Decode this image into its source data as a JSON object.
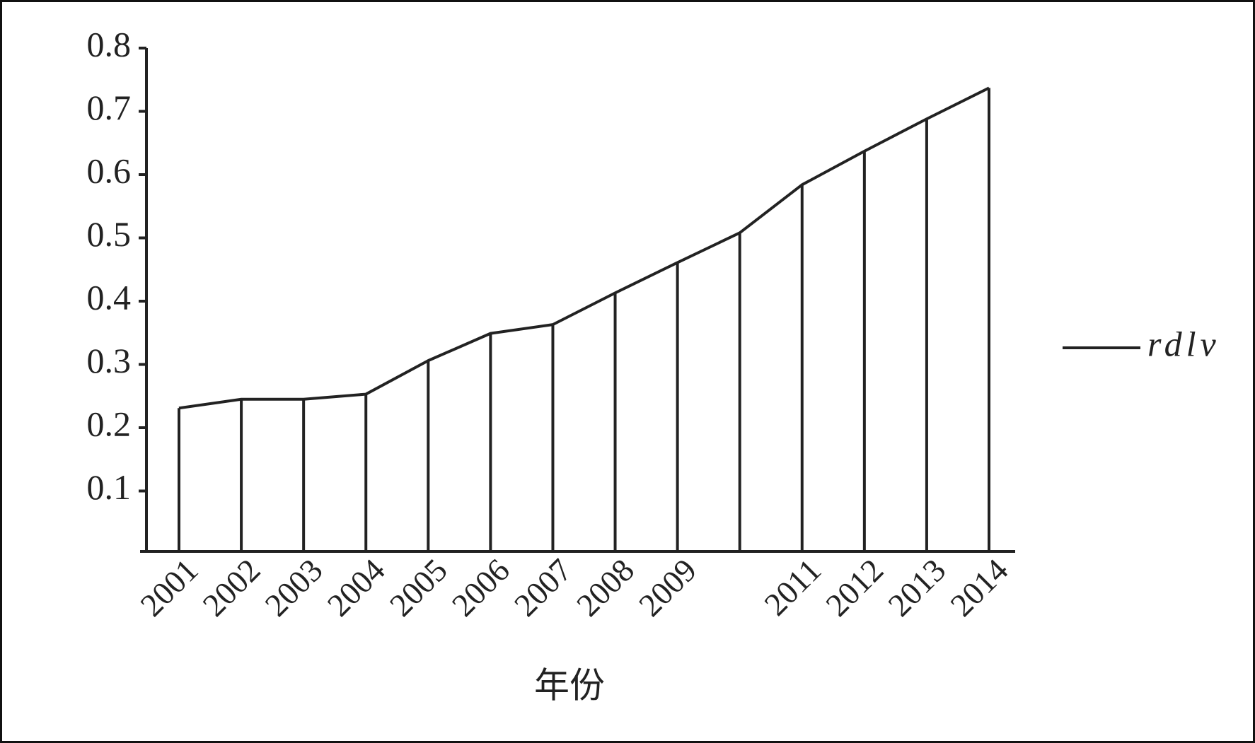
{
  "chart_data": {
    "type": "line",
    "xlabel": "年份",
    "categories": [
      "2001",
      "2002",
      "2003",
      "2004",
      "2005",
      "2006",
      "2007",
      "2008",
      "2009",
      null,
      "2011",
      "2012",
      "2013",
      "2014"
    ],
    "series": [
      {
        "name": "rdlv",
        "color": "#222222",
        "values": [
          0.231,
          0.245,
          0.245,
          0.253,
          0.306,
          0.349,
          0.363,
          0.413,
          0.461,
          0.508,
          0.584,
          0.637,
          0.688,
          0.737
        ]
      }
    ],
    "ylim": [
      0,
      0.8
    ],
    "yticks": [
      0.1,
      0.2,
      0.3,
      0.4,
      0.5,
      0.6,
      0.7,
      0.8
    ],
    "drop_lines": true,
    "legend": "right"
  }
}
